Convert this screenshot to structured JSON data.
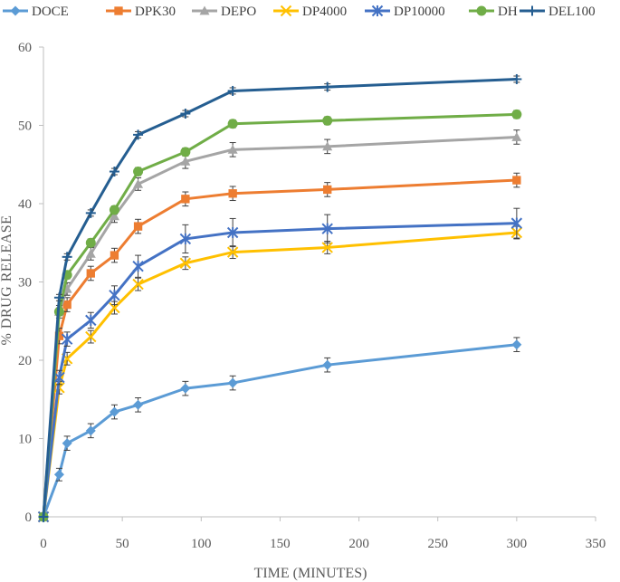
{
  "chart_data": {
    "type": "line",
    "title": "",
    "xlabel": "TIME (MINUTES)",
    "ylabel": "% DRUG RELEASE",
    "xlim": [
      0,
      350
    ],
    "ylim": [
      0,
      60
    ],
    "x_ticks": [
      0,
      50,
      100,
      150,
      200,
      250,
      300,
      350
    ],
    "y_ticks": [
      0,
      10,
      20,
      30,
      40,
      50,
      60
    ],
    "grid": false,
    "legend_position": "top",
    "x": [
      0,
      10,
      15,
      30,
      45,
      60,
      90,
      120,
      180,
      300
    ],
    "series": [
      {
        "name": "DOCE",
        "color": "#5B9BD5",
        "marker": "diamond",
        "values": [
          0,
          5.4,
          9.4,
          11.0,
          13.4,
          14.3,
          16.4,
          17.1,
          19.4,
          22.0
        ],
        "errors": [
          0,
          0.8,
          0.9,
          0.9,
          0.9,
          0.9,
          0.9,
          0.9,
          0.9,
          0.9
        ]
      },
      {
        "name": "DPK30",
        "color": "#ED7D31",
        "marker": "square",
        "values": [
          0,
          23.1,
          27.1,
          31.1,
          33.4,
          37.1,
          40.6,
          41.3,
          41.8,
          43.0
        ],
        "errors": [
          0,
          1.0,
          0.9,
          0.9,
          0.9,
          0.9,
          0.9,
          0.9,
          0.9,
          0.9
        ]
      },
      {
        "name": "DEPO",
        "color": "#A5A5A5",
        "marker": "triangle",
        "values": [
          0,
          26.2,
          29.1,
          33.6,
          38.4,
          42.5,
          45.4,
          46.9,
          47.3,
          48.5
        ],
        "errors": [
          0,
          0.8,
          0.8,
          0.8,
          0.8,
          0.8,
          0.9,
          0.9,
          0.9,
          0.9
        ]
      },
      {
        "name": "DP4000",
        "color": "#FFC000",
        "marker": "x",
        "values": [
          0,
          16.5,
          20.2,
          23.0,
          26.7,
          29.7,
          32.4,
          33.8,
          34.4,
          36.3
        ],
        "errors": [
          0,
          0.8,
          0.8,
          0.8,
          0.8,
          0.8,
          0.8,
          0.8,
          0.8,
          0.8
        ]
      },
      {
        "name": "DP10000",
        "color": "#4472C4",
        "marker": "asterisk",
        "values": [
          0,
          17.8,
          22.7,
          25.1,
          28.3,
          32.0,
          35.5,
          36.3,
          36.8,
          37.5
        ],
        "errors": [
          0,
          0.9,
          0.9,
          1.0,
          1.2,
          1.4,
          1.8,
          1.8,
          1.8,
          1.9
        ]
      },
      {
        "name": "DH",
        "color": "#70AD47",
        "marker": "circle",
        "values": [
          0,
          26.2,
          30.9,
          35.0,
          39.2,
          44.1,
          46.6,
          50.2,
          50.6,
          51.4
        ],
        "errors": [
          0,
          0.5,
          0.5,
          0.5,
          0.5,
          0.5,
          0.5,
          0.5,
          0.5,
          0.5
        ]
      },
      {
        "name": "DEL100",
        "color": "#255E91",
        "marker": "plus",
        "values": [
          0,
          28.0,
          33.2,
          38.8,
          44.1,
          48.8,
          51.5,
          54.4,
          54.9,
          55.9
        ],
        "errors": [
          0,
          0.4,
          0.4,
          0.4,
          0.4,
          0.4,
          0.4,
          0.4,
          0.4,
          0.4
        ]
      }
    ]
  }
}
